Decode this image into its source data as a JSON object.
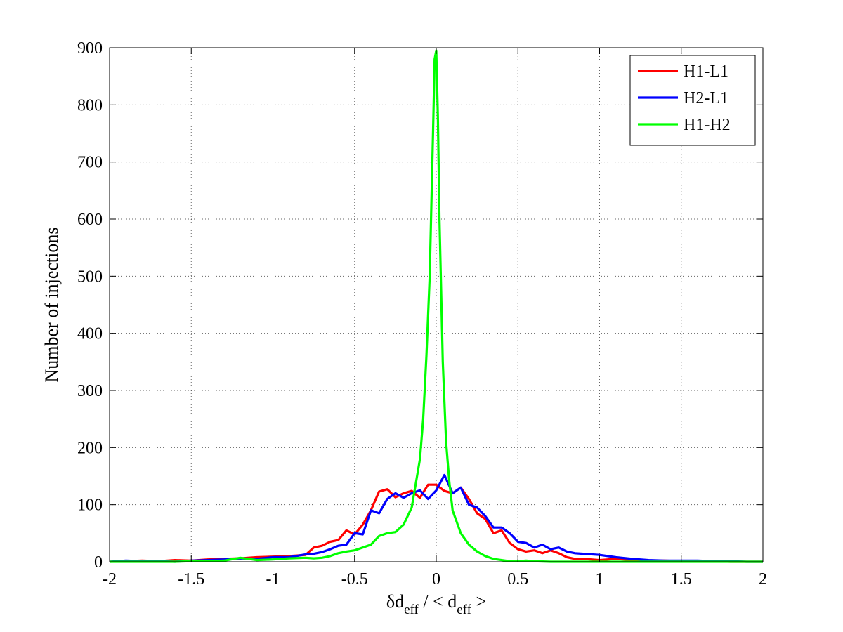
{
  "chart_data": {
    "type": "line",
    "title": "",
    "xlabel": {
      "main": "δd",
      "sub": "eff",
      "mid": " / < d",
      "sub2": "eff",
      "end": " >"
    },
    "ylabel": "Number of injections",
    "xlim": [
      -2,
      2
    ],
    "ylim": [
      0,
      900
    ],
    "xticks": [
      -2,
      -1.5,
      -1,
      -0.5,
      0,
      0.5,
      1,
      1.5,
      2
    ],
    "xtick_labels": [
      "-2",
      "-1.5",
      "-1",
      "-0.5",
      "0",
      "0.5",
      "1",
      "1.5",
      "2"
    ],
    "yticks": [
      0,
      100,
      200,
      300,
      400,
      500,
      600,
      700,
      800,
      900
    ],
    "ytick_labels": [
      "0",
      "100",
      "200",
      "300",
      "400",
      "500",
      "600",
      "700",
      "800",
      "900"
    ],
    "grid": true,
    "legend_position": "top-right",
    "series": [
      {
        "name": "H1-L1",
        "color": "#ff0000",
        "x": [
          -2,
          -1.9,
          -1.8,
          -1.7,
          -1.6,
          -1.5,
          -1.4,
          -1.3,
          -1.2,
          -1.1,
          -1.0,
          -0.9,
          -0.8,
          -0.75,
          -0.7,
          -0.65,
          -0.6,
          -0.55,
          -0.5,
          -0.45,
          -0.4,
          -0.35,
          -0.3,
          -0.25,
          -0.2,
          -0.15,
          -0.1,
          -0.05,
          0,
          0.05,
          0.1,
          0.15,
          0.2,
          0.25,
          0.3,
          0.35,
          0.4,
          0.45,
          0.5,
          0.55,
          0.6,
          0.65,
          0.7,
          0.75,
          0.8,
          0.85,
          0.9,
          1.0,
          1.1,
          1.2,
          1.3,
          1.4,
          1.5,
          1.6,
          1.7,
          1.8,
          1.9,
          2.0
        ],
        "y": [
          0,
          1,
          2,
          1,
          3,
          2,
          4,
          5,
          6,
          8,
          9,
          10,
          12,
          25,
          28,
          35,
          38,
          55,
          48,
          65,
          90,
          123,
          127,
          113,
          120,
          124,
          112,
          135,
          135,
          124,
          120,
          130,
          110,
          85,
          75,
          50,
          55,
          33,
          22,
          18,
          20,
          15,
          20,
          15,
          8,
          5,
          5,
          3,
          5,
          3,
          2,
          2,
          1,
          1,
          1,
          0,
          0,
          0
        ]
      },
      {
        "name": "H2-L1",
        "color": "#0000ff",
        "x": [
          -2,
          -1.9,
          -1.8,
          -1.7,
          -1.6,
          -1.5,
          -1.4,
          -1.3,
          -1.2,
          -1.1,
          -1.0,
          -0.9,
          -0.8,
          -0.75,
          -0.7,
          -0.65,
          -0.6,
          -0.55,
          -0.5,
          -0.45,
          -0.4,
          -0.35,
          -0.3,
          -0.25,
          -0.2,
          -0.15,
          -0.1,
          -0.05,
          0,
          0.05,
          0.1,
          0.15,
          0.2,
          0.25,
          0.3,
          0.35,
          0.4,
          0.45,
          0.5,
          0.55,
          0.6,
          0.65,
          0.7,
          0.75,
          0.8,
          0.85,
          0.9,
          1.0,
          1.1,
          1.2,
          1.3,
          1.4,
          1.5,
          1.6,
          1.7,
          1.8,
          1.9,
          2.0
        ],
        "y": [
          0,
          2,
          1,
          1,
          0,
          2,
          3,
          4,
          6,
          5,
          8,
          8,
          13,
          14,
          17,
          22,
          28,
          30,
          50,
          48,
          90,
          85,
          110,
          120,
          112,
          120,
          125,
          110,
          125,
          152,
          120,
          130,
          100,
          95,
          80,
          60,
          60,
          50,
          35,
          33,
          25,
          30,
          22,
          25,
          18,
          15,
          14,
          12,
          8,
          5,
          3,
          2,
          2,
          2,
          1,
          1,
          0,
          0
        ]
      },
      {
        "name": "H1-H2",
        "color": "#00ff00",
        "x": [
          -2,
          -1.9,
          -1.8,
          -1.7,
          -1.6,
          -1.5,
          -1.4,
          -1.3,
          -1.2,
          -1.1,
          -1.0,
          -0.9,
          -0.8,
          -0.75,
          -0.7,
          -0.65,
          -0.6,
          -0.55,
          -0.5,
          -0.45,
          -0.4,
          -0.35,
          -0.3,
          -0.25,
          -0.2,
          -0.15,
          -0.1,
          -0.08,
          -0.06,
          -0.04,
          -0.02,
          -0.01,
          0,
          0.01,
          0.02,
          0.04,
          0.06,
          0.08,
          0.1,
          0.15,
          0.2,
          0.25,
          0.3,
          0.35,
          0.4,
          0.45,
          0.5,
          0.55,
          0.6,
          0.7,
          0.8,
          1.0,
          1.2,
          1.5,
          2.0
        ],
        "y": [
          0,
          0,
          0,
          0,
          0,
          1,
          1,
          2,
          7,
          3,
          4,
          6,
          7,
          6,
          7,
          10,
          15,
          18,
          20,
          25,
          30,
          45,
          50,
          52,
          65,
          95,
          180,
          250,
          360,
          500,
          750,
          880,
          895,
          780,
          600,
          350,
          210,
          140,
          90,
          50,
          30,
          18,
          10,
          5,
          3,
          1,
          1,
          2,
          1,
          0,
          0,
          0,
          0,
          0,
          0
        ]
      }
    ]
  }
}
